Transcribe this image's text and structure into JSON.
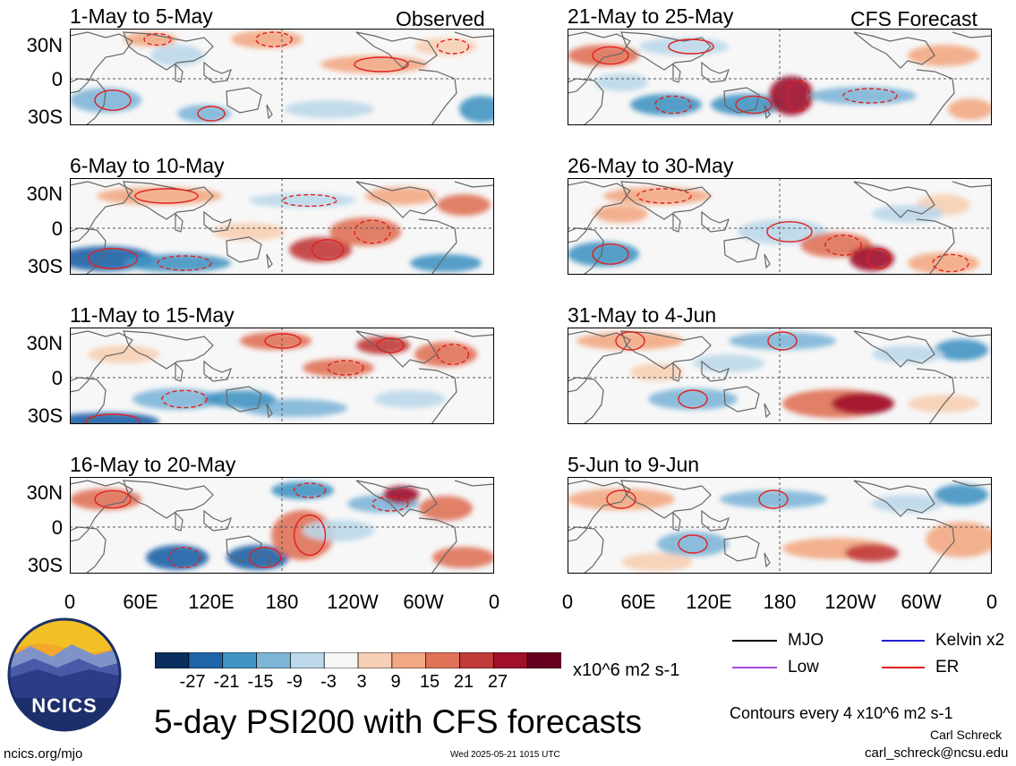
{
  "panels_left": [
    {
      "title": "1-May to 5-May"
    },
    {
      "title": "6-May to 10-May"
    },
    {
      "title": "11-May to 15-May"
    },
    {
      "title": "16-May to 20-May"
    }
  ],
  "panels_right": [
    {
      "title": "21-May to 25-May"
    },
    {
      "title": "26-May to 30-May"
    },
    {
      "title": "31-May to 4-Jun"
    },
    {
      "title": "5-Jun to 9-Jun"
    }
  ],
  "labels": {
    "observed": "Observed",
    "forecast": "CFS Forecast"
  },
  "lat_ticks": [
    "30N",
    "0",
    "30S"
  ],
  "lon_ticks": [
    "0",
    "60E",
    "120E",
    "180",
    "120W",
    "60W",
    "0"
  ],
  "colorbar": {
    "colors": [
      "#0a2f5e",
      "#1f63a8",
      "#4393c3",
      "#7fb6d8",
      "#bcd8ea",
      "#f6f6f6",
      "#f7cfb4",
      "#f2a883",
      "#e07258",
      "#c23b3b",
      "#a0102b",
      "#67001f"
    ],
    "labels": [
      "-27",
      "-21",
      "-15",
      "-9",
      "-3",
      "3",
      "9",
      "15",
      "21",
      "27"
    ],
    "units": "x10^6 m2 s-1"
  },
  "legend": {
    "items": [
      {
        "label": "MJO",
        "color": "#000000"
      },
      {
        "label": "Kelvin x2",
        "color": "#1f1fd6"
      },
      {
        "label": "Low",
        "color": "#a24bd8"
      },
      {
        "label": "ER",
        "color": "#e02020"
      }
    ],
    "contours_note": "Contours every 4 x10^6 m2 s-1"
  },
  "main_title": "5-day PSI200 with CFS forecasts",
  "logo_text": "NCICS",
  "footer": {
    "left": "ncics.org/mjo",
    "center": "Wed 2025-05-21 1015 UTC",
    "author": "Carl Schreck",
    "email": "carl_schreck@ncsu.edu"
  }
}
